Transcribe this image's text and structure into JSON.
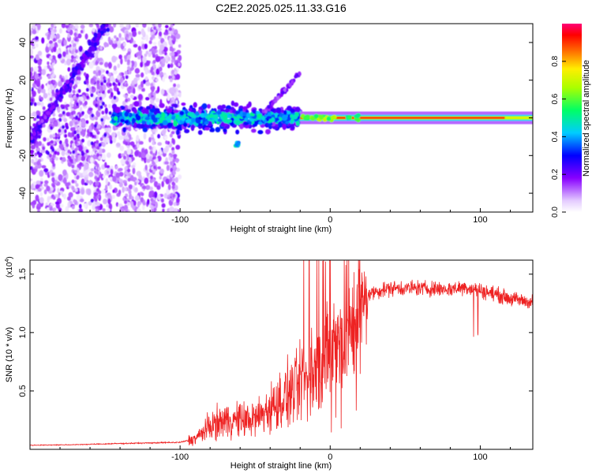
{
  "title": "C2E2.2025.025.11.33.G16",
  "colors": {
    "signal": "#ee2222",
    "axis": "#000000",
    "background": "#ffffff"
  },
  "chart_data": [
    {
      "type": "heatmap",
      "id": "spectrogram",
      "title": "C2E2.2025.025.11.33.G16",
      "xlabel": "Height of straight line (km)",
      "ylabel": "Frequency (Hz)",
      "xlim": [
        -200,
        135
      ],
      "ylim": [
        -50,
        50
      ],
      "xticks": [
        -100,
        0,
        100
      ],
      "yticks": [
        -40,
        -20,
        0,
        20,
        40
      ],
      "xtick_labels": [
        "-100",
        "0",
        "100"
      ],
      "ytick_labels": [
        "-40",
        "-20",
        "0",
        "20",
        "40"
      ],
      "colorbar": {
        "label": "Normalized spectral amplitude",
        "range": [
          0,
          1
        ],
        "ticks": [
          0.0,
          0.2,
          0.4,
          0.6,
          0.8
        ],
        "tick_labels": [
          "0.0",
          "0.2",
          "0.4",
          "0.6",
          "0.8"
        ]
      },
      "features": [
        {
          "name": "steady carrier tone",
          "x_range": [
            -20,
            135
          ],
          "freq_hz": 0,
          "amplitude": 0.9
        },
        {
          "name": "fluctuating band",
          "x_range": [
            -145,
            -20
          ],
          "freq_hz": 0,
          "spread_hz": 8,
          "amplitude": 0.35
        },
        {
          "name": "diagonal streak",
          "x_from": -200,
          "x_to": -150,
          "freq_from_hz": -12,
          "freq_to_hz": 48
        },
        {
          "name": "diffuse noise region",
          "x_range": [
            -200,
            -100
          ],
          "freq_range_hz": [
            -50,
            50
          ],
          "amplitude": 0.1
        }
      ]
    },
    {
      "type": "line",
      "id": "snr",
      "xlabel": "Height of straight line (km)",
      "ylabel": "SNR (10 * v/v)",
      "y_multiplier_label": "(x10",
      "y_multiplier_exp": "4",
      "y_multiplier_close": ")",
      "xlim": [
        -200,
        135
      ],
      "ylim": [
        0,
        16200
      ],
      "xticks": [
        -100,
        0,
        100
      ],
      "yticks": [
        5000,
        10000,
        15000
      ],
      "xtick_labels": [
        "-100",
        "0",
        "100"
      ],
      "ytick_labels": [
        "0.5",
        "1.0",
        "1.5"
      ],
      "series": [
        {
          "name": "SNR",
          "x": [
            -200,
            -170,
            -140,
            -120,
            -100,
            -90,
            -80,
            -70,
            -60,
            -50,
            -40,
            -30,
            -20,
            -10,
            0,
            10,
            20,
            25,
            30,
            40,
            60,
            80,
            90,
            100,
            110,
            120,
            135
          ],
          "values": [
            350,
            400,
            500,
            550,
            600,
            900,
            2000,
            2500,
            2500,
            2600,
            3500,
            4500,
            5500,
            6500,
            8000,
            9500,
            12000,
            13200,
            13500,
            13800,
            13800,
            13700,
            13900,
            13600,
            13300,
            12900,
            12600
          ]
        }
      ]
    }
  ]
}
